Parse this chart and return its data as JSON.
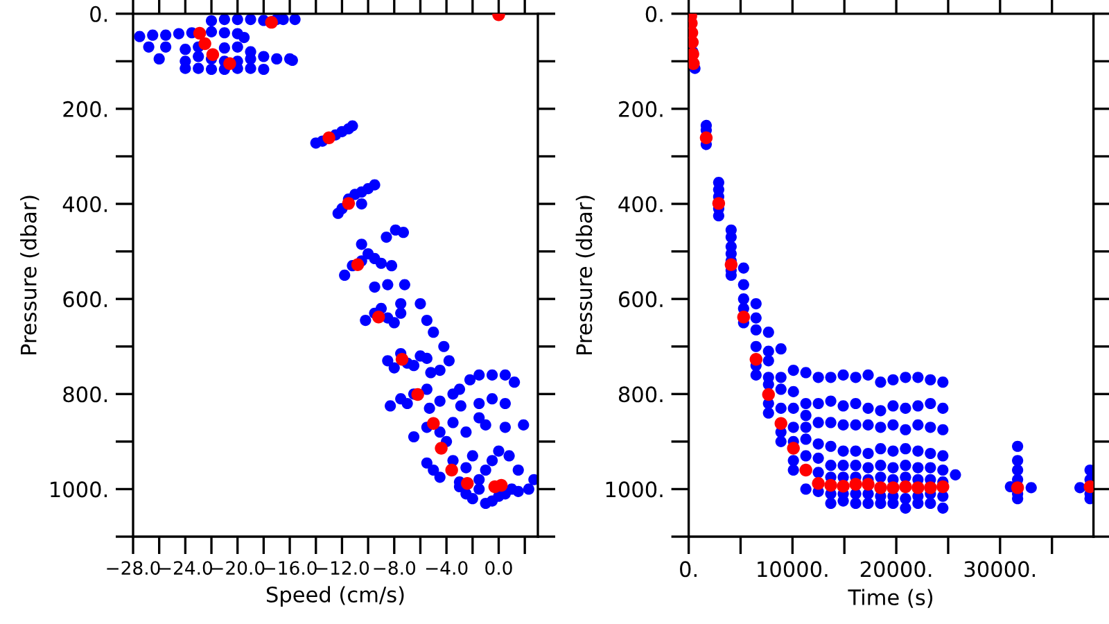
{
  "chart_data": [
    {
      "type": "scatter",
      "xlabel": "Speed (cm/s)",
      "ylabel": "Pressure (dbar)",
      "marker": "circle",
      "xlim": [
        -28,
        3
      ],
      "ylim": [
        1100,
        0
      ],
      "xticks": [
        {
          "value": -28,
          "label": "−28.0"
        },
        {
          "value": -26,
          "label": null
        },
        {
          "value": -24,
          "label": "−24.0"
        },
        {
          "value": -22,
          "label": null
        },
        {
          "value": -20,
          "label": "−20.0"
        },
        {
          "value": -18,
          "label": null
        },
        {
          "value": -16,
          "label": "−16.0"
        },
        {
          "value": -14,
          "label": null
        },
        {
          "value": -12,
          "label": "−12.0"
        },
        {
          "value": -10,
          "label": null
        },
        {
          "value": -8,
          "label": "−8.0"
        },
        {
          "value": -6,
          "label": null
        },
        {
          "value": -4,
          "label": "−4.0"
        },
        {
          "value": -2,
          "label": null
        },
        {
          "value": 0,
          "label": "0.0"
        },
        {
          "value": 2,
          "label": null
        }
      ],
      "yticks": [
        {
          "value": 0,
          "label": "0."
        },
        {
          "value": 100,
          "label": null
        },
        {
          "value": 200,
          "label": "200."
        },
        {
          "value": 300,
          "label": null
        },
        {
          "value": 400,
          "label": "400."
        },
        {
          "value": 500,
          "label": null
        },
        {
          "value": 600,
          "label": "600."
        },
        {
          "value": 700,
          "label": null
        },
        {
          "value": 800,
          "label": "800."
        },
        {
          "value": 900,
          "label": null
        },
        {
          "value": 1000,
          "label": "1000."
        },
        {
          "value": 1100,
          "label": null
        }
      ],
      "series": [
        {
          "color": "#0000ff",
          "x": [
            -22,
            -21,
            -20,
            -19,
            -18,
            -17,
            -16.5,
            -15.6,
            -27.5,
            -26.5,
            -25.5,
            -24.5,
            -23.5,
            -22,
            -21,
            -20,
            -19.5,
            -26.8,
            -25.5,
            -24,
            -23,
            -21,
            -20,
            -19,
            -26,
            -24,
            -23,
            -22,
            -21,
            -20,
            -19,
            -18,
            -17,
            -16,
            -15.8,
            -24,
            -23,
            -22,
            -21,
            -20,
            -19,
            -18,
            -14,
            -13.5,
            -12.5,
            -12,
            -11.5,
            -11.2,
            -12.3,
            -12,
            -11.5,
            -11,
            -10.5,
            -10,
            -9.5,
            -10.5,
            -11.8,
            -11.2,
            -10.5,
            -10,
            -9.5,
            -9,
            -10.5,
            -8.2,
            -8.6,
            -7.9,
            -7.3,
            -10.2,
            -9.5,
            -9,
            -8.5,
            -8,
            -7.5,
            -9.5,
            -8.5,
            -7.2,
            -7.5,
            -6,
            -5.5,
            -5,
            -8.5,
            -8,
            -7.5,
            -7,
            -6.5,
            -6,
            -5.5,
            -5.2,
            -4.2,
            -3.8,
            -4.5,
            -8.3,
            -7.5,
            -7,
            -6.5,
            -5.5,
            -5.3,
            -4.5,
            -3.5,
            -3,
            -2.9,
            -2.2,
            -1.5,
            -0.5,
            0.5,
            1.2,
            -6.5,
            -5.5,
            -4.5,
            -4,
            -3.5,
            -2.5,
            -1.5,
            -1.5,
            -0.5,
            0.5,
            -1,
            0.5,
            1.9,
            -5.5,
            -5,
            -4.5,
            -3.5,
            -3,
            -2.5,
            -2,
            -1.5,
            -1,
            -0.5,
            0,
            0.8,
            1.5,
            -2.5,
            -2,
            -1,
            -0.5,
            0,
            0.5,
            1,
            1.5,
            2.3,
            2.7,
            -3,
            -1.5
          ],
          "values": [
            15,
            12,
            12,
            12,
            14,
            12,
            12,
            12,
            48,
            45,
            45,
            42,
            40,
            38,
            40,
            42,
            50,
            70,
            70,
            75,
            70,
            72,
            70,
            80,
            95,
            100,
            90,
            95,
            100,
            100,
            95,
            90,
            95,
            95,
            98,
            115,
            115,
            117,
            117,
            115,
            115,
            117,
            272,
            268,
            255,
            248,
            242,
            236,
            420,
            410,
            390,
            380,
            375,
            368,
            360,
            400,
            550,
            530,
            520,
            505,
            515,
            525,
            485,
            530,
            470,
            455,
            460,
            645,
            630,
            620,
            640,
            650,
            630,
            575,
            570,
            570,
            610,
            610,
            645,
            670,
            730,
            745,
            715,
            735,
            740,
            720,
            725,
            755,
            700,
            730,
            750,
            825,
            810,
            820,
            800,
            790,
            830,
            815,
            800,
            790,
            825,
            770,
            760,
            760,
            760,
            775,
            890,
            870,
            880,
            900,
            860,
            880,
            850,
            820,
            810,
            820,
            865,
            870,
            865,
            945,
            960,
            975,
            940,
            985,
            955,
            930,
            1000,
            960,
            940,
            920,
            930,
            960,
            1010,
            1020,
            1030,
            1025,
            1015,
            1010,
            1000,
            1005,
            1000,
            980,
            995,
            980
          ]
        },
        {
          "color": "#ff0000",
          "x": [
            -22.9,
            -22.5,
            -21.9,
            -20.6,
            -17.4,
            -13.0,
            -11.5,
            -10.8,
            -9.2,
            -7.4,
            -6.2,
            -5.0,
            -4.4,
            -3.6,
            -2.4,
            -0.3,
            0.2,
            0
          ],
          "values": [
            41,
            63,
            86,
            105,
            18,
            261,
            399,
            528,
            638,
            727,
            801,
            862,
            914,
            960,
            988,
            995,
            992,
            2
          ]
        }
      ]
    },
    {
      "type": "scatter",
      "xlabel": "Time (s)",
      "ylabel": "Pressure (dbar)",
      "marker": "circle",
      "xlim": [
        0,
        39000
      ],
      "ylim": [
        1100,
        0
      ],
      "xticks": [
        {
          "value": 0,
          "label": "0."
        },
        {
          "value": 5000,
          "label": null
        },
        {
          "value": 10000,
          "label": "10000."
        },
        {
          "value": 15000,
          "label": null
        },
        {
          "value": 20000,
          "label": "20000."
        },
        {
          "value": 25000,
          "label": null
        },
        {
          "value": 30000,
          "label": "30000."
        },
        {
          "value": 35000,
          "label": null
        }
      ],
      "yticks": [
        {
          "value": 0,
          "label": "0."
        },
        {
          "value": 100,
          "label": null
        },
        {
          "value": 200,
          "label": "200."
        },
        {
          "value": 300,
          "label": null
        },
        {
          "value": 400,
          "label": "400."
        },
        {
          "value": 500,
          "label": null
        },
        {
          "value": 600,
          "label": "600."
        },
        {
          "value": 700,
          "label": null
        },
        {
          "value": 800,
          "label": "800."
        },
        {
          "value": 900,
          "label": null
        },
        {
          "value": 1000,
          "label": "1000."
        },
        {
          "value": 1100,
          "label": null
        }
      ],
      "series": [
        {
          "color": "#0000ff",
          "x": [
            400,
            600,
            1690,
            1690,
            1690,
            2890,
            2890,
            2890,
            2890,
            2890,
            4090,
            4090,
            4090,
            4090,
            4090,
            4090,
            4090,
            5290,
            5290,
            5290,
            5290,
            5290,
            6490,
            6490,
            6490,
            6490,
            6490,
            6490,
            7690,
            7690,
            7690,
            7690,
            7690,
            7690,
            7690,
            8890,
            8890,
            8890,
            8890,
            8890,
            8890,
            10090,
            10090,
            10090,
            10090,
            10090,
            10090,
            10090,
            11290,
            11290,
            11290,
            11290,
            11290,
            11290,
            11290,
            12490,
            12490,
            12490,
            12490,
            12490,
            12490,
            12490,
            13690,
            13690,
            13690,
            13690,
            13690,
            13690,
            13690,
            13690,
            14890,
            14890,
            14890,
            14890,
            14890,
            14890,
            14890,
            14890,
            16090,
            16090,
            16090,
            16090,
            16090,
            16090,
            16090,
            16090,
            17290,
            17290,
            17290,
            17290,
            17290,
            17290,
            17290,
            17290,
            18490,
            18490,
            18490,
            18490,
            18490,
            18490,
            18490,
            18490,
            19690,
            19690,
            19690,
            19690,
            19690,
            19690,
            19690,
            19690,
            20890,
            20890,
            20890,
            20890,
            20890,
            20890,
            20890,
            20890,
            22090,
            22090,
            22090,
            22090,
            22090,
            22090,
            22090,
            22090,
            23290,
            23290,
            23290,
            23290,
            23290,
            23290,
            23290,
            23290,
            24490,
            24490,
            24490,
            24490,
            24490,
            24490,
            24490,
            24490,
            25700,
            31690,
            31690,
            31690,
            31690,
            31690,
            31690,
            31000,
            33000,
            38670,
            38670,
            38670,
            38670,
            37700
          ],
          "values": [
            80,
            115,
            235,
            245,
            275,
            355,
            370,
            385,
            410,
            425,
            455,
            470,
            490,
            505,
            520,
            540,
            550,
            535,
            570,
            600,
            620,
            650,
            610,
            640,
            665,
            700,
            740,
            760,
            670,
            710,
            730,
            765,
            780,
            820,
            840,
            705,
            765,
            790,
            830,
            880,
            900,
            750,
            795,
            830,
            870,
            900,
            940,
            960,
            755,
            820,
            845,
            870,
            895,
            930,
            1000,
            765,
            820,
            860,
            905,
            935,
            965,
            1005,
            765,
            815,
            860,
            910,
            950,
            975,
            1010,
            1030,
            760,
            825,
            865,
            920,
            950,
            975,
            1010,
            1025,
            765,
            820,
            865,
            920,
            950,
            975,
            1010,
            1030,
            760,
            830,
            865,
            925,
            955,
            980,
            1010,
            1030,
            775,
            835,
            870,
            915,
            950,
            975,
            1015,
            1030,
            770,
            825,
            865,
            920,
            955,
            980,
            1015,
            1030,
            765,
            830,
            875,
            915,
            950,
            975,
            1020,
            1040,
            765,
            825,
            865,
            920,
            955,
            980,
            1015,
            1030,
            770,
            820,
            870,
            925,
            955,
            980,
            1010,
            1030,
            775,
            830,
            875,
            930,
            960,
            985,
            1015,
            1040,
            970,
            910,
            940,
            960,
            980,
            1010,
            1020,
            995,
            997,
            960,
            980,
            1010,
            1020,
            997
          ]
        },
        {
          "color": "#ff0000",
          "x": [
            200,
            250,
            300,
            350,
            400,
            450,
            1690,
            2890,
            4090,
            5290,
            6490,
            7690,
            8890,
            10090,
            11290,
            12490,
            13690,
            14890,
            16090,
            17290,
            18490,
            19690,
            20890,
            22090,
            23290,
            24490,
            31690,
            38670
          ],
          "values": [
            5,
            20,
            40,
            60,
            85,
            105,
            261,
            399,
            528,
            638,
            727,
            801,
            862,
            914,
            960,
            988,
            992,
            994,
            990,
            990,
            997,
            997,
            995,
            997,
            997,
            995,
            997,
            995
          ]
        }
      ]
    }
  ]
}
